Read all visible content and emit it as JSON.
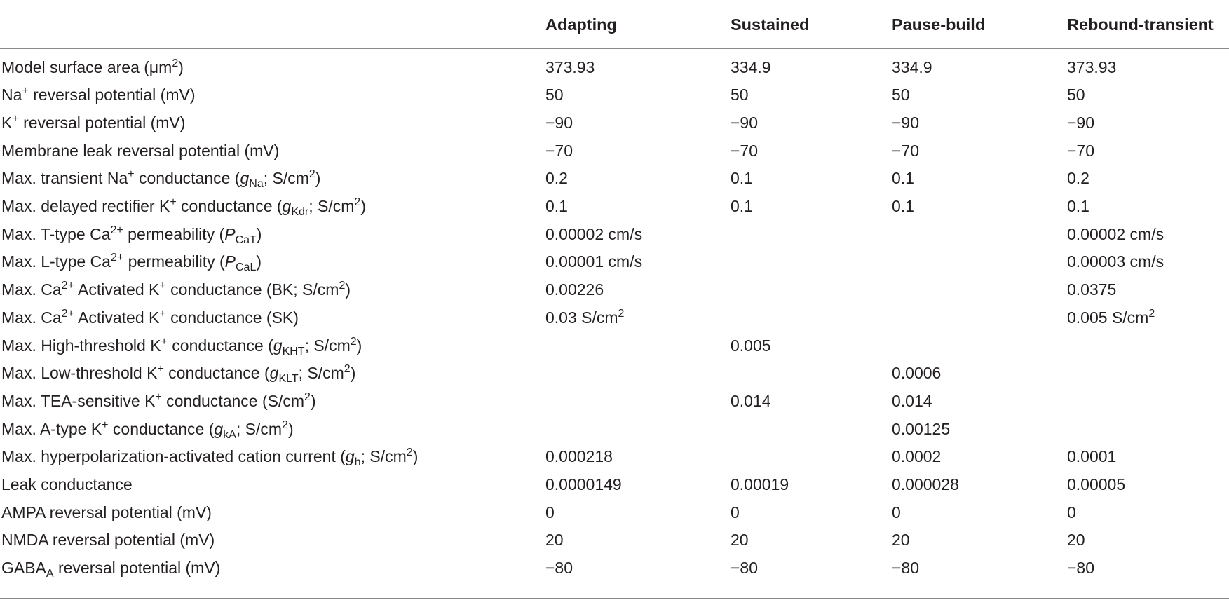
{
  "columns": [
    "",
    "Adapting",
    "Sustained",
    "Pause-build",
    "Rebound-transient"
  ],
  "rows": [
    {
      "label": [
        {
          "t": "Model surface area (μm"
        },
        {
          "sup": "2"
        },
        {
          "t": ")"
        }
      ],
      "values": [
        "373.93",
        "334.9",
        "334.9",
        "373.93"
      ]
    },
    {
      "label": [
        {
          "t": "Na"
        },
        {
          "sup": "+"
        },
        {
          "t": " reversal potential (mV)"
        }
      ],
      "values": [
        "50",
        "50",
        "50",
        "50"
      ]
    },
    {
      "label": [
        {
          "t": "K"
        },
        {
          "sup": "+"
        },
        {
          "t": " reversal potential (mV)"
        }
      ],
      "values": [
        "−90",
        "−90",
        "−90",
        "−90"
      ]
    },
    {
      "label": [
        {
          "t": "Membrane leak reversal potential (mV)"
        }
      ],
      "values": [
        "−70",
        "−70",
        "−70",
        "−70"
      ]
    },
    {
      "label": [
        {
          "t": "Max. transient Na"
        },
        {
          "sup": "+"
        },
        {
          "t": " conductance ("
        },
        {
          "it": "g"
        },
        {
          "sub": "Na"
        },
        {
          "t": "; S/cm"
        },
        {
          "sup": "2"
        },
        {
          "t": ")"
        }
      ],
      "values": [
        "0.2",
        "0.1",
        "0.1",
        "0.2"
      ]
    },
    {
      "label": [
        {
          "t": "Max. delayed rectifier K"
        },
        {
          "sup": "+"
        },
        {
          "t": " conductance ("
        },
        {
          "it": "g"
        },
        {
          "sub": "Kdr"
        },
        {
          "t": "; S/cm"
        },
        {
          "sup": "2"
        },
        {
          "t": ")"
        }
      ],
      "values": [
        "0.1",
        "0.1",
        "0.1",
        "0.1"
      ]
    },
    {
      "label": [
        {
          "t": "Max. T-type Ca"
        },
        {
          "sup": "2+"
        },
        {
          "t": " permeability ("
        },
        {
          "it": "P"
        },
        {
          "sub": "CaT"
        },
        {
          "t": ")"
        }
      ],
      "values": [
        "0.00002 cm/s",
        "",
        "",
        "0.00002 cm/s"
      ]
    },
    {
      "label": [
        {
          "t": "Max. L-type Ca"
        },
        {
          "sup": "2+"
        },
        {
          "t": " permeability ("
        },
        {
          "it": "P"
        },
        {
          "sub": "CaL"
        },
        {
          "t": ")"
        }
      ],
      "values": [
        "0.00001 cm/s",
        "",
        "",
        "0.00003 cm/s"
      ]
    },
    {
      "label": [
        {
          "t": "Max. Ca"
        },
        {
          "sup": "2+"
        },
        {
          "t": " Activated K"
        },
        {
          "sup": "+"
        },
        {
          "t": " conductance (BK; S/cm"
        },
        {
          "sup": "2"
        },
        {
          "t": ")"
        }
      ],
      "values": [
        "0.00226",
        "",
        "",
        "0.0375"
      ]
    },
    {
      "label": [
        {
          "t": "Max. Ca"
        },
        {
          "sup": "2+"
        },
        {
          "t": " Activated K"
        },
        {
          "sup": "+"
        },
        {
          "t": " conductance (SK)"
        }
      ],
      "values": [
        "0.03 S/cm",
        "",
        "",
        "0.005 S/cm"
      ],
      "value_sups": [
        "2",
        "",
        "",
        "2"
      ]
    },
    {
      "label": [
        {
          "t": "Max. High-threshold K"
        },
        {
          "sup": "+"
        },
        {
          "t": " conductance ("
        },
        {
          "it": "g"
        },
        {
          "sub": "KHT"
        },
        {
          "t": "; S/cm"
        },
        {
          "sup": "2"
        },
        {
          "t": ")"
        }
      ],
      "values": [
        "",
        "0.005",
        "",
        ""
      ]
    },
    {
      "label": [
        {
          "t": "Max. Low-threshold K"
        },
        {
          "sup": "+"
        },
        {
          "t": " conductance ("
        },
        {
          "it": "g"
        },
        {
          "sub": "KLT"
        },
        {
          "t": "; S/cm"
        },
        {
          "sup": "2"
        },
        {
          "t": ")"
        }
      ],
      "values": [
        "",
        "",
        "0.0006",
        ""
      ]
    },
    {
      "label": [
        {
          "t": "Max. TEA-sensitive K"
        },
        {
          "sup": "+"
        },
        {
          "t": " conductance (S/cm"
        },
        {
          "sup": "2"
        },
        {
          "t": ")"
        }
      ],
      "values": [
        "",
        "0.014",
        "0.014",
        ""
      ]
    },
    {
      "label": [
        {
          "t": "Max. A-type K"
        },
        {
          "sup": "+"
        },
        {
          "t": " conductance ("
        },
        {
          "it": "g"
        },
        {
          "sub": "kA"
        },
        {
          "t": "; S/cm"
        },
        {
          "sup": "2"
        },
        {
          "t": ")"
        }
      ],
      "values": [
        "",
        "",
        "0.00125",
        ""
      ]
    },
    {
      "label": [
        {
          "t": "Max. hyperpolarization-activated cation current ("
        },
        {
          "it": "g"
        },
        {
          "sub": "h"
        },
        {
          "t": "; S/cm"
        },
        {
          "sup": "2"
        },
        {
          "t": ")"
        }
      ],
      "values": [
        "0.000218",
        "",
        "0.0002",
        "0.0001"
      ]
    },
    {
      "label": [
        {
          "t": "Leak conductance"
        }
      ],
      "values": [
        "0.0000149",
        "0.00019",
        "0.000028",
        "0.00005"
      ]
    },
    {
      "label": [
        {
          "t": "AMPA reversal potential (mV)"
        }
      ],
      "values": [
        "0",
        "0",
        "0",
        "0"
      ]
    },
    {
      "label": [
        {
          "t": "NMDA reversal potential (mV)"
        }
      ],
      "values": [
        "20",
        "20",
        "20",
        "20"
      ]
    },
    {
      "label": [
        {
          "t": "GABA"
        },
        {
          "sub": "A"
        },
        {
          "t": " reversal potential (mV)"
        }
      ],
      "values": [
        "−80",
        "−80",
        "−80",
        "−80"
      ]
    }
  ]
}
